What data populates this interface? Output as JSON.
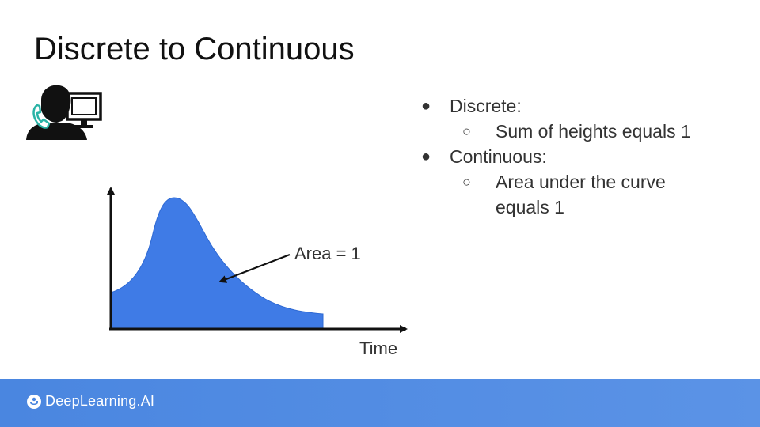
{
  "slide": {
    "title": "Discrete to Continuous"
  },
  "bullets": [
    {
      "text": "Discrete:",
      "sub": [
        "Sum of heights equals 1"
      ]
    },
    {
      "text": "Continuous:",
      "sub": [
        "Area under the curve",
        "equals 1"
      ]
    }
  ],
  "diagram": {
    "area_label": "Area = 1",
    "x_axis_label": "Time",
    "fill_color": "#3f7be6",
    "icon": "person-at-computer-with-phone-icon"
  },
  "footer": {
    "brand": "DeepLearning.AI",
    "color": "#4a86e0"
  },
  "markers": {
    "level1": "●",
    "level2": "○"
  }
}
